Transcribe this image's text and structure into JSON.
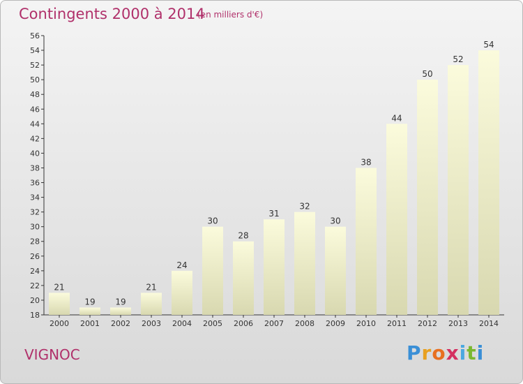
{
  "title": "Contingents 2000 à 2014",
  "unit": "(en milliers d'€)",
  "commune": "VIGNOC",
  "logo": {
    "letters": [
      "P",
      "r",
      "o",
      "x",
      "i",
      "t",
      "i"
    ],
    "colors": [
      "#3a8fd6",
      "#e8a020",
      "#e87020",
      "#d43060",
      "#4aa8e0",
      "#7ab830",
      "#3a8fd6"
    ]
  },
  "colors": {
    "title": "#b0306a",
    "bar_top": "#fbfbdc",
    "bar_bottom": "#d8d8b0",
    "axis": "#333333"
  },
  "chart_data": {
    "type": "bar",
    "title": "Contingents 2000 à 2014",
    "subtitle": "(en milliers d'€)",
    "xlabel": "",
    "ylabel": "",
    "categories": [
      "2000",
      "2001",
      "2002",
      "2003",
      "2004",
      "2005",
      "2006",
      "2007",
      "2008",
      "2009",
      "2010",
      "2011",
      "2012",
      "2013",
      "2014"
    ],
    "values": [
      21,
      19,
      19,
      21,
      24,
      30,
      28,
      31,
      32,
      30,
      38,
      44,
      50,
      52,
      54
    ],
    "ylim": [
      18,
      56
    ],
    "yticks": [
      18,
      20,
      22,
      24,
      26,
      28,
      30,
      32,
      34,
      36,
      38,
      40,
      42,
      44,
      46,
      48,
      50,
      52,
      54,
      56
    ],
    "grid": false,
    "legend": "none"
  }
}
